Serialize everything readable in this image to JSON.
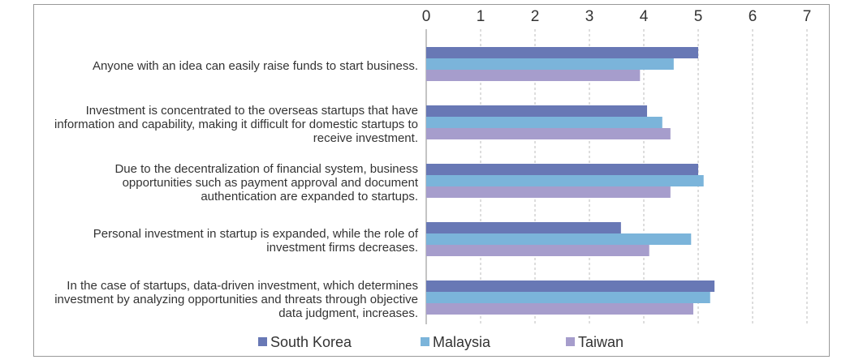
{
  "chart_data": {
    "type": "hbar",
    "categories": [
      "Anyone with an idea can easily raise funds to start business.",
      "Investment is concentrated to the overseas startups that have information and capability, making it difficult for domestic startups to receive investment.",
      "Due to the decentralization of financial system, business opportunities such as payment approval and document authentication are expanded to startups.",
      "Personal investment in startup is expanded, while the role of investment firms decreases.",
      "In the case of startups, data-driven investment, which determines investment by analyzing opportunities and threats through objective data judgment, increases."
    ],
    "series": [
      {
        "name": "South Korea",
        "color": "#6878b5",
        "values": [
          5.0,
          4.06,
          5.0,
          3.58,
          5.3
        ]
      },
      {
        "name": "Malaysia",
        "color": "#7bb4da",
        "values": [
          4.55,
          4.34,
          5.1,
          4.87,
          5.22
        ]
      },
      {
        "name": "Taiwan",
        "color": "#a69dcc",
        "values": [
          3.93,
          4.49,
          4.49,
          4.1,
          4.91
        ]
      }
    ],
    "xlim": [
      0,
      7
    ],
    "xticks": [
      0,
      1,
      2,
      3,
      4,
      5,
      6,
      7
    ],
    "grid": true,
    "legend": "bottom"
  }
}
